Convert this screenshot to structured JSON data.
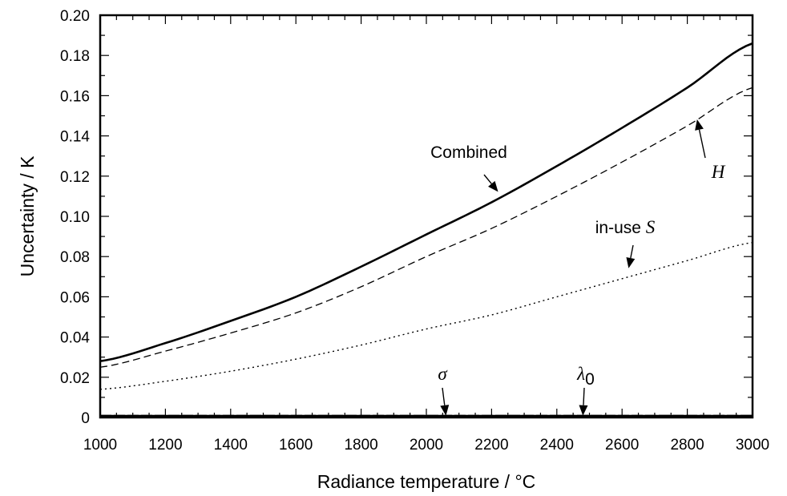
{
  "chart_data": {
    "type": "line",
    "xlabel": "Radiance temperature / °C",
    "ylabel": "Uncertainty / K",
    "xlim": [
      1000,
      3000
    ],
    "ylim": [
      0,
      0.2
    ],
    "x_ticks": [
      1000,
      1200,
      1400,
      1600,
      1800,
      2000,
      2200,
      2400,
      2600,
      2800,
      3000
    ],
    "y_ticks": [
      0,
      0.02,
      0.04,
      0.06,
      0.08,
      0.1,
      0.12,
      0.14,
      0.16,
      0.18,
      0.2
    ],
    "x_tick_labels": [
      "1000",
      "1200",
      "1400",
      "1600",
      "1800",
      "2000",
      "2200",
      "2400",
      "2600",
      "2800",
      "3000"
    ],
    "y_tick_labels": [
      "0",
      "0.02",
      "0.04",
      "0.06",
      "0.08",
      "0.10",
      "0.12",
      "0.14",
      "0.16",
      "0.18",
      "0.20"
    ],
    "grid": false,
    "x": [
      1000,
      1200,
      1400,
      1600,
      1800,
      2000,
      2200,
      2400,
      2600,
      2800,
      3000
    ],
    "series": [
      {
        "name": "Combined",
        "style": "solid",
        "values": [
          0.028,
          0.037,
          0.048,
          0.06,
          0.075,
          0.091,
          0.107,
          0.125,
          0.144,
          0.164,
          0.186
        ]
      },
      {
        "name": "H",
        "style": "dashed",
        "values": [
          0.025,
          0.033,
          0.042,
          0.052,
          0.065,
          0.08,
          0.094,
          0.11,
          0.127,
          0.145,
          0.164
        ]
      },
      {
        "name": "in-use S",
        "style": "dotted",
        "values": [
          0.014,
          0.018,
          0.023,
          0.029,
          0.036,
          0.044,
          0.051,
          0.06,
          0.069,
          0.078,
          0.087
        ]
      },
      {
        "name": "σ",
        "style": "solid",
        "values": [
          0.0005,
          0.0005,
          0.0005,
          0.0005,
          0.0005,
          0.0005,
          0.0005,
          0.0005,
          0.0005,
          0.0005,
          0.0005
        ]
      },
      {
        "name": "λ0",
        "style": "dashed",
        "values": [
          0.0005,
          0.0005,
          0.0005,
          0.0005,
          0.0005,
          0.0005,
          0.0005,
          0.0005,
          0.0005,
          0.0005,
          0.0005
        ]
      }
    ],
    "annotations": [
      {
        "text": "Combined",
        "series": "Combined",
        "point_x": 2220,
        "point_y": 0.111
      },
      {
        "text": "H",
        "series": "H",
        "point_x": 2830,
        "point_y": 0.147
      },
      {
        "text": "in-use S",
        "series": "in-use S",
        "point_x": 2620,
        "point_y": 0.073
      },
      {
        "text": "σ",
        "series": "σ",
        "point_x": 2060,
        "point_y": 0.0005
      },
      {
        "text": "λ0",
        "series": "λ0",
        "point_x": 2480,
        "point_y": 0.0005
      }
    ],
    "annotation_parts": {
      "combined": "Combined",
      "h": "H",
      "inuse_prefix": "in-use ",
      "inuse_symbol": "S",
      "sigma": "σ",
      "lambda": "λ",
      "lambda_sub": "0"
    }
  }
}
